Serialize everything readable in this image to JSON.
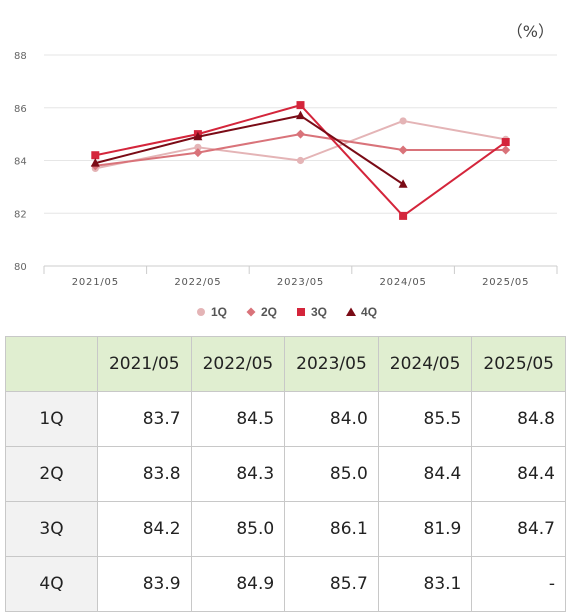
{
  "unit": "（%）",
  "chart_data": {
    "type": "line",
    "categories": [
      "2021/05",
      "2022/05",
      "2023/05",
      "2024/05",
      "2025/05"
    ],
    "ylim": [
      80,
      88
    ],
    "yticks": [
      "80",
      "82",
      "84",
      "86",
      "88"
    ],
    "grid": true,
    "legend_position": "bottom",
    "series": [
      {
        "name": "1Q",
        "values": [
          83.7,
          84.5,
          84.0,
          85.5,
          84.8
        ],
        "color": "#e4b4b6",
        "marker": "circle"
      },
      {
        "name": "2Q",
        "values": [
          83.8,
          84.3,
          85.0,
          84.4,
          84.4
        ],
        "color": "#d9737a",
        "marker": "diamond"
      },
      {
        "name": "3Q",
        "values": [
          84.2,
          85.0,
          86.1,
          81.9,
          84.7
        ],
        "color": "#d4253b",
        "marker": "square"
      },
      {
        "name": "4Q",
        "values": [
          83.9,
          84.9,
          85.7,
          83.1,
          null
        ],
        "color": "#7a0b16",
        "marker": "triangle"
      }
    ]
  },
  "table": {
    "headers": [
      "",
      "2021/05",
      "2022/05",
      "2023/05",
      "2024/05",
      "2025/05"
    ],
    "rows": [
      {
        "label": "1Q",
        "cells": [
          "83.7",
          "84.5",
          "84.0",
          "85.5",
          "84.8"
        ]
      },
      {
        "label": "2Q",
        "cells": [
          "83.8",
          "84.3",
          "85.0",
          "84.4",
          "84.4"
        ]
      },
      {
        "label": "3Q",
        "cells": [
          "84.2",
          "85.0",
          "86.1",
          "81.9",
          "84.7"
        ]
      },
      {
        "label": "4Q",
        "cells": [
          "83.9",
          "84.9",
          "85.7",
          "83.1",
          "-"
        ]
      }
    ]
  }
}
